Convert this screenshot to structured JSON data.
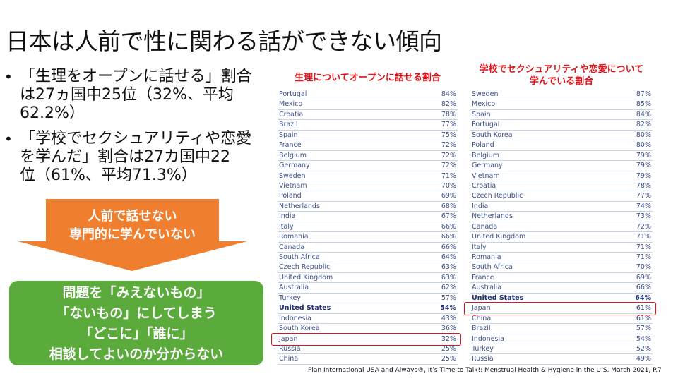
{
  "title": "日本は人前で性に関わる話ができない傾向",
  "bullets": [
    "「生理をオープンに話せる」割合\nは27ヵ国中25位（32%、平均\n62.2%）",
    "「学校でセクシュアリティや恋愛\nを学んだ」割合は27カ国中22\n位（61%、平均71.3%）"
  ],
  "arrow_text": "人前で話せない\n専門的に学んでいない",
  "green_box_text": "問題を「みえないもの」\n「ないもの」にしてしまう\n「どこに」「誰に」\n相談してよいのか分からない",
  "colors": {
    "header_red": "#e0121a",
    "arrow_orange": "#f07e2f",
    "green": "#5bab3c",
    "row_text": "#3d4f8a"
  },
  "table_left": {
    "header": "生理についてオープンに話せる割合",
    "rows": [
      [
        "Portugal",
        "84%"
      ],
      [
        "Mexico",
        "82%"
      ],
      [
        "Croatia",
        "78%"
      ],
      [
        "Brazil",
        "77%"
      ],
      [
        "Spain",
        "75%"
      ],
      [
        "France",
        "72%"
      ],
      [
        "Belgium",
        "72%"
      ],
      [
        "Germany",
        "72%"
      ],
      [
        "Sweden",
        "71%"
      ],
      [
        "Vietnam",
        "70%"
      ],
      [
        "Poland",
        "69%"
      ],
      [
        "Netherlands",
        "68%"
      ],
      [
        "India",
        "67%"
      ],
      [
        "Italy",
        "66%"
      ],
      [
        "Romania",
        "66%"
      ],
      [
        "Canada",
        "66%"
      ],
      [
        "South Africa",
        "64%"
      ],
      [
        "Czech Republic",
        "63%"
      ],
      [
        "United Kingdom",
        "63%"
      ],
      [
        "Australia",
        "62%"
      ],
      [
        "Turkey",
        "57%"
      ],
      [
        "United States",
        "54%"
      ],
      [
        "Indonesia",
        "43%"
      ],
      [
        "South Korea",
        "36%"
      ],
      [
        "Japan",
        "32%"
      ],
      [
        "Russia",
        "25%"
      ],
      [
        "China",
        "25%"
      ]
    ]
  },
  "table_right": {
    "header": "学校でセクシュアリティや恋愛について\n学んでいる割合",
    "rows": [
      [
        "Sweden",
        "87%"
      ],
      [
        "Mexico",
        "85%"
      ],
      [
        "Spain",
        "84%"
      ],
      [
        "Portugal",
        "82%"
      ],
      [
        "South Korea",
        "80%"
      ],
      [
        "Poland",
        "80%"
      ],
      [
        "Belgium",
        "79%"
      ],
      [
        "Germany",
        "79%"
      ],
      [
        "Vietnam",
        "79%"
      ],
      [
        "Croatia",
        "78%"
      ],
      [
        "Czech Republic",
        "77%"
      ],
      [
        "India",
        "74%"
      ],
      [
        "Netherlands",
        "73%"
      ],
      [
        "Canada",
        "72%"
      ],
      [
        "United Kingdom",
        "71%"
      ],
      [
        "Italy",
        "71%"
      ],
      [
        "Romania",
        "71%"
      ],
      [
        "South Africa",
        "70%"
      ],
      [
        "France",
        "69%"
      ],
      [
        "Australia",
        "66%"
      ],
      [
        "United States",
        "64%"
      ],
      [
        "Japan",
        "61%"
      ],
      [
        "China",
        "61%"
      ],
      [
        "Brazil",
        "57%"
      ],
      [
        "Indonesia",
        "54%"
      ],
      [
        "Turkey",
        "52%"
      ],
      [
        "Russia",
        "49%"
      ]
    ]
  },
  "bold_country": "United States",
  "highlight_country": "Japan",
  "source": "Plan International USA and Always®, It’s Time to Talk!: Menstrual Health & Hygiene in the U.S. March 2021, P.7"
}
